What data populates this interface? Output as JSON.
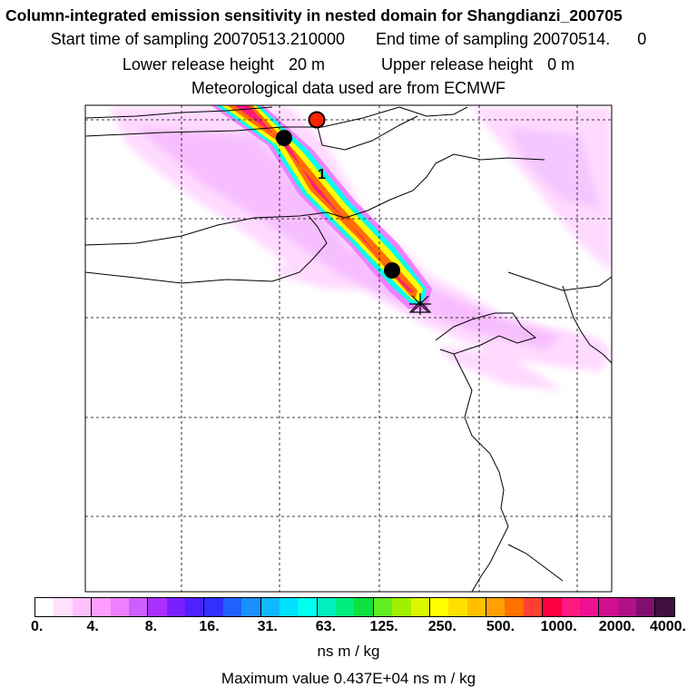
{
  "header": {
    "title": "Column-integrated emission sensitivity in nested domain for Shangdianzi_200705",
    "start_label": "Start time of sampling",
    "start_value": "20070513.210000",
    "end_label": "End time of sampling",
    "end_value": "20070514.",
    "end_suffix": "0",
    "lower_label": "Lower release height",
    "lower_value": "20 m",
    "upper_label": "Upper release height",
    "upper_value": "0 m",
    "met_line": "Meteorological data used are from ECMWF"
  },
  "map": {
    "plume_label": "1",
    "markers": [
      {
        "name": "red-release-point",
        "color": "#ff2200"
      },
      {
        "name": "black-point-upper",
        "color": "#000000"
      },
      {
        "name": "black-point-lower",
        "color": "#000000"
      },
      {
        "name": "station-star",
        "color": "#000000"
      }
    ]
  },
  "legend": {
    "colors": [
      "#ffffff",
      "#ffe0ff",
      "#ffc0ff",
      "#ff9cff",
      "#ee80ff",
      "#cc60ff",
      "#aa30ff",
      "#7a20ff",
      "#5020ff",
      "#3030ff",
      "#2060ff",
      "#1a90ff",
      "#10b8ff",
      "#00e0ff",
      "#00ffee",
      "#00f0c0",
      "#00ee80",
      "#10e040",
      "#60ee20",
      "#a0f000",
      "#d8f800",
      "#ffff00",
      "#ffe000",
      "#ffc000",
      "#ffa000",
      "#ff7000",
      "#ff4030",
      "#ff0040",
      "#ff1a80",
      "#ee1090",
      "#d0108c",
      "#b01088",
      "#801070",
      "#401040"
    ],
    "ticks": [
      "0.",
      "4.",
      "8.",
      "16.",
      "31.",
      "63.",
      "125.",
      "250.",
      "500.",
      "1000.",
      "2000.",
      "4000."
    ],
    "unit": "ns m / kg",
    "max_text": "Maximum value  0.437E+04 ns m / kg"
  }
}
